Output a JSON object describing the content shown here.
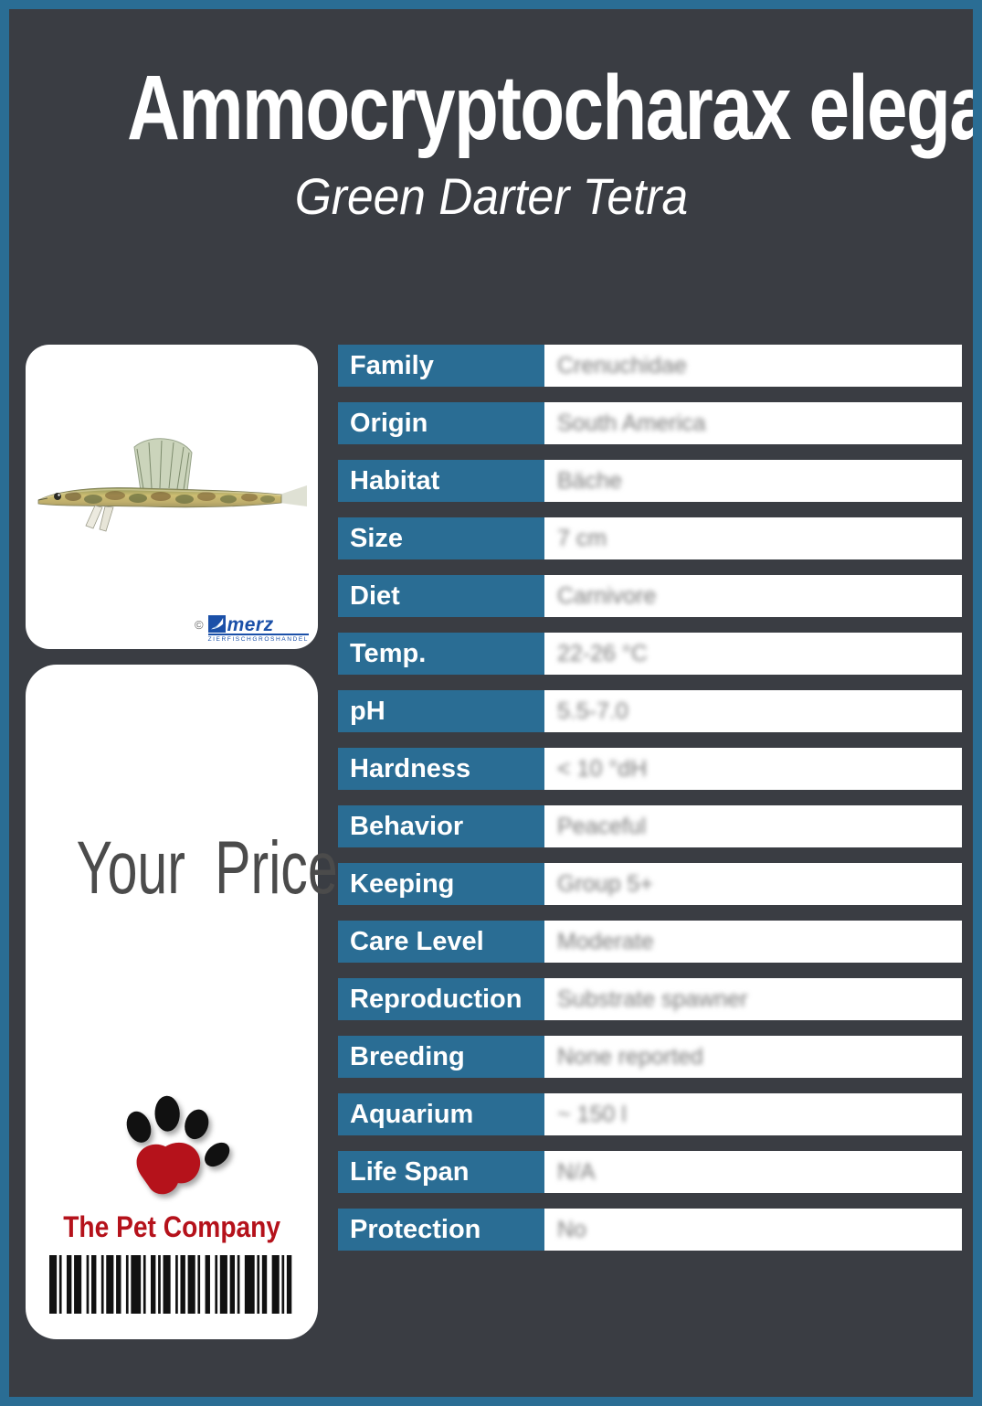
{
  "page": {
    "title": "Ammocryptocharax elegans",
    "subtitle": "Green Darter Tetra"
  },
  "photo_card": {
    "credit": {
      "symbol": "©",
      "brand": "merz",
      "tagline": "ZIERFISCHGROSHANDEL"
    }
  },
  "price_card": {
    "price_label": "Your Price",
    "brand": "The Pet Company"
  },
  "spec_table": {
    "rows": [
      {
        "label": "Family",
        "value": "Crenuchidae"
      },
      {
        "label": "Origin",
        "value": "South America"
      },
      {
        "label": "Habitat",
        "value": "Bäche"
      },
      {
        "label": "Size",
        "value": "7 cm"
      },
      {
        "label": "Diet",
        "value": "Carnivore"
      },
      {
        "label": "Temp.",
        "value": "22-26 °C"
      },
      {
        "label": "pH",
        "value": "5.5-7.0"
      },
      {
        "label": "Hardness",
        "value": "< 10 °dH"
      },
      {
        "label": "Behavior",
        "value": "Peaceful"
      },
      {
        "label": "Keeping",
        "value": "Group 5+"
      },
      {
        "label": "Care Level",
        "value": "Moderate"
      },
      {
        "label": "Reproduction",
        "value": "Substrate spawner"
      },
      {
        "label": "Breeding",
        "value": "None reported"
      },
      {
        "label": "Aquarium",
        "value": "~ 150 l"
      },
      {
        "label": "Life Span",
        "value": "N/A"
      },
      {
        "label": "Protection",
        "value": "No"
      }
    ]
  },
  "colors": {
    "accent_blue": "#2a6d94",
    "background_dark": "#3a3d43",
    "brand_red": "#b5121b",
    "merz_blue": "#1b50a8",
    "value_gray": "#7b7b7b",
    "price_gray": "#4b4b4b"
  }
}
